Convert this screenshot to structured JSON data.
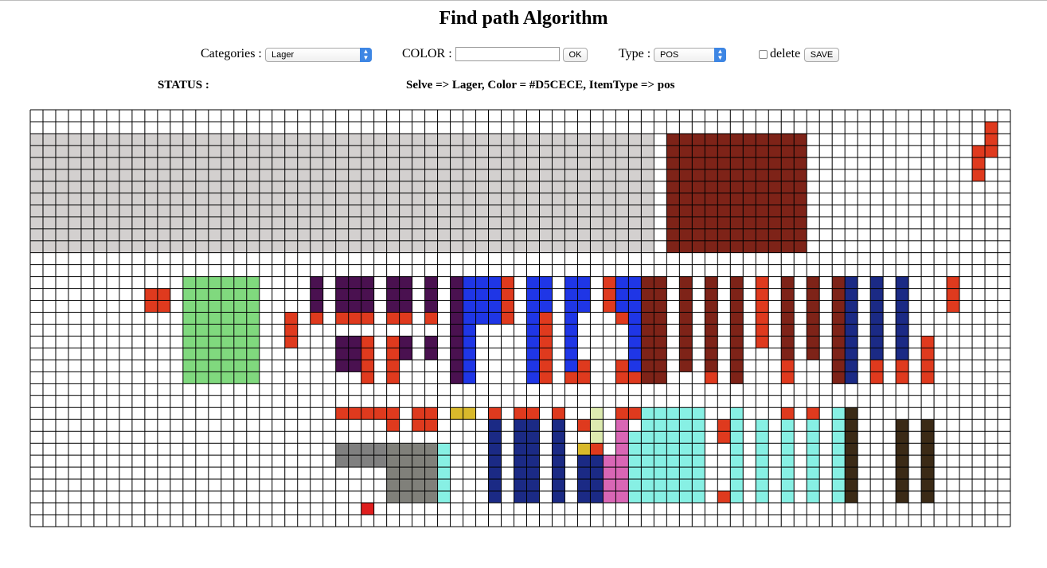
{
  "page": {
    "title": "Find path Algorithm"
  },
  "toolbar": {
    "categories_label": "Categories :",
    "categories_value": "Lager",
    "color_label": "COLOR :",
    "color_value": "",
    "ok_label": "OK",
    "type_label": "Type :",
    "type_value": "POS",
    "delete_label": "delete",
    "delete_checked": false,
    "save_label": "SAVE"
  },
  "status": {
    "label": "STATUS :",
    "message": "Selve => Lager, Color = #D5CECE, ItemType => pos"
  },
  "grid": {
    "cols": 77,
    "rows": 35,
    "line_color": "#000000",
    "cell_color": "#ffffff",
    "blocks": [
      {
        "c": 0,
        "r": 2,
        "w": 49,
        "h": 10,
        "color": "#D3D0CF"
      },
      {
        "c": 50,
        "r": 2,
        "w": 11,
        "h": 10,
        "color": "#7E2318"
      },
      {
        "c": 75,
        "r": 1,
        "w": 1,
        "h": 3,
        "color": "#DF3A1E"
      },
      {
        "c": 74,
        "r": 3,
        "w": 1,
        "h": 3,
        "color": "#DF3A1E"
      },
      {
        "c": 9,
        "r": 15,
        "w": 1,
        "h": 2,
        "color": "#DF3A1E"
      },
      {
        "c": 10,
        "r": 15,
        "w": 1,
        "h": 2,
        "color": "#DF3A1E"
      },
      {
        "c": 12,
        "r": 14,
        "w": 6,
        "h": 9,
        "color": "#80D97E"
      },
      {
        "c": 20,
        "r": 17,
        "w": 1,
        "h": 3,
        "color": "#DF3A1E"
      },
      {
        "c": 22,
        "r": 14,
        "w": 1,
        "h": 3,
        "color": "#4A1150"
      },
      {
        "c": 22,
        "r": 17,
        "w": 1,
        "h": 1,
        "color": "#DF3A1E"
      },
      {
        "c": 24,
        "r": 14,
        "w": 1,
        "h": 3,
        "color": "#4A1150"
      },
      {
        "c": 24,
        "r": 17,
        "w": 1,
        "h": 1,
        "color": "#DF3A1E"
      },
      {
        "c": 25,
        "r": 14,
        "w": 1,
        "h": 3,
        "color": "#4A1150"
      },
      {
        "c": 25,
        "r": 17,
        "w": 1,
        "h": 1,
        "color": "#DF3A1E"
      },
      {
        "c": 26,
        "r": 14,
        "w": 1,
        "h": 3,
        "color": "#4A1150"
      },
      {
        "c": 26,
        "r": 17,
        "w": 1,
        "h": 1,
        "color": "#DF3A1E"
      },
      {
        "c": 28,
        "r": 14,
        "w": 1,
        "h": 3,
        "color": "#4A1150"
      },
      {
        "c": 28,
        "r": 17,
        "w": 1,
        "h": 1,
        "color": "#DF3A1E"
      },
      {
        "c": 29,
        "r": 14,
        "w": 1,
        "h": 3,
        "color": "#4A1150"
      },
      {
        "c": 29,
        "r": 17,
        "w": 1,
        "h": 1,
        "color": "#DF3A1E"
      },
      {
        "c": 31,
        "r": 14,
        "w": 1,
        "h": 3,
        "color": "#4A1150"
      },
      {
        "c": 31,
        "r": 17,
        "w": 1,
        "h": 1,
        "color": "#DF3A1E"
      },
      {
        "c": 24,
        "r": 19,
        "w": 1,
        "h": 3,
        "color": "#4A1150"
      },
      {
        "c": 25,
        "r": 19,
        "w": 1,
        "h": 3,
        "color": "#4A1150"
      },
      {
        "c": 26,
        "r": 19,
        "w": 1,
        "h": 4,
        "color": "#DF3A1E"
      },
      {
        "c": 28,
        "r": 19,
        "w": 1,
        "h": 4,
        "color": "#DF3A1E"
      },
      {
        "c": 29,
        "r": 19,
        "w": 1,
        "h": 2,
        "color": "#4A1150"
      },
      {
        "c": 31,
        "r": 19,
        "w": 1,
        "h": 2,
        "color": "#4A1150"
      },
      {
        "c": 33,
        "r": 14,
        "w": 1,
        "h": 9,
        "color": "#4A1150"
      },
      {
        "c": 34,
        "r": 14,
        "w": 1,
        "h": 9,
        "color": "#1F36E6"
      },
      {
        "c": 35,
        "r": 14,
        "w": 1,
        "h": 4,
        "color": "#1F36E6"
      },
      {
        "c": 36,
        "r": 14,
        "w": 1,
        "h": 4,
        "color": "#1F36E6"
      },
      {
        "c": 37,
        "r": 14,
        "w": 1,
        "h": 4,
        "color": "#DF3A1E"
      },
      {
        "c": 39,
        "r": 14,
        "w": 1,
        "h": 9,
        "color": "#1F36E6"
      },
      {
        "c": 40,
        "r": 14,
        "w": 1,
        "h": 3,
        "color": "#1F36E6"
      },
      {
        "c": 40,
        "r": 17,
        "w": 1,
        "h": 6,
        "color": "#DF3A1E"
      },
      {
        "c": 42,
        "r": 14,
        "w": 1,
        "h": 8,
        "color": "#1F36E6"
      },
      {
        "c": 42,
        "r": 22,
        "w": 1,
        "h": 1,
        "color": "#DF3A1E"
      },
      {
        "c": 43,
        "r": 14,
        "w": 1,
        "h": 3,
        "color": "#1F36E6"
      },
      {
        "c": 43,
        "r": 21,
        "w": 1,
        "h": 2,
        "color": "#DF3A1E"
      },
      {
        "c": 45,
        "r": 14,
        "w": 1,
        "h": 3,
        "color": "#DF3A1E"
      },
      {
        "c": 46,
        "r": 14,
        "w": 1,
        "h": 3,
        "color": "#1F36E6"
      },
      {
        "c": 46,
        "r": 17,
        "w": 1,
        "h": 1,
        "color": "#DF3A1E"
      },
      {
        "c": 46,
        "r": 21,
        "w": 1,
        "h": 2,
        "color": "#DF3A1E"
      },
      {
        "c": 47,
        "r": 14,
        "w": 1,
        "h": 8,
        "color": "#1F36E6"
      },
      {
        "c": 47,
        "r": 22,
        "w": 1,
        "h": 1,
        "color": "#DF3A1E"
      },
      {
        "c": 48,
        "r": 14,
        "w": 1,
        "h": 9,
        "color": "#7E2318"
      },
      {
        "c": 49,
        "r": 14,
        "w": 1,
        "h": 9,
        "color": "#7E2318"
      },
      {
        "c": 51,
        "r": 14,
        "w": 1,
        "h": 8,
        "color": "#7E2318"
      },
      {
        "c": 53,
        "r": 14,
        "w": 1,
        "h": 8,
        "color": "#7E2318"
      },
      {
        "c": 53,
        "r": 22,
        "w": 1,
        "h": 1,
        "color": "#DF3A1E"
      },
      {
        "c": 55,
        "r": 14,
        "w": 1,
        "h": 9,
        "color": "#7E2318"
      },
      {
        "c": 57,
        "r": 14,
        "w": 1,
        "h": 6,
        "color": "#DF3A1E"
      },
      {
        "c": 59,
        "r": 14,
        "w": 1,
        "h": 7,
        "color": "#7E2318"
      },
      {
        "c": 59,
        "r": 21,
        "w": 1,
        "h": 2,
        "color": "#DF3A1E"
      },
      {
        "c": 61,
        "r": 14,
        "w": 1,
        "h": 7,
        "color": "#7E2318"
      },
      {
        "c": 63,
        "r": 14,
        "w": 1,
        "h": 9,
        "color": "#7E2318"
      },
      {
        "c": 64,
        "r": 14,
        "w": 1,
        "h": 9,
        "color": "#1B2A85"
      },
      {
        "c": 66,
        "r": 14,
        "w": 1,
        "h": 7,
        "color": "#1B2A85"
      },
      {
        "c": 66,
        "r": 21,
        "w": 1,
        "h": 2,
        "color": "#DF3A1E"
      },
      {
        "c": 68,
        "r": 14,
        "w": 1,
        "h": 7,
        "color": "#1B2A85"
      },
      {
        "c": 68,
        "r": 21,
        "w": 1,
        "h": 2,
        "color": "#DF3A1E"
      },
      {
        "c": 70,
        "r": 19,
        "w": 1,
        "h": 4,
        "color": "#DF3A1E"
      },
      {
        "c": 72,
        "r": 14,
        "w": 1,
        "h": 3,
        "color": "#DF3A1E"
      },
      {
        "c": 24,
        "r": 25,
        "w": 1,
        "h": 1,
        "color": "#DF3A1E"
      },
      {
        "c": 25,
        "r": 25,
        "w": 1,
        "h": 1,
        "color": "#DF3A1E"
      },
      {
        "c": 26,
        "r": 25,
        "w": 1,
        "h": 1,
        "color": "#DF3A1E"
      },
      {
        "c": 27,
        "r": 25,
        "w": 1,
        "h": 1,
        "color": "#DF3A1E"
      },
      {
        "c": 28,
        "r": 25,
        "w": 1,
        "h": 2,
        "color": "#DF3A1E"
      },
      {
        "c": 30,
        "r": 25,
        "w": 1,
        "h": 2,
        "color": "#DF3A1E"
      },
      {
        "c": 31,
        "r": 25,
        "w": 1,
        "h": 2,
        "color": "#DF3A1E"
      },
      {
        "c": 33,
        "r": 25,
        "w": 2,
        "h": 1,
        "color": "#D9B92B"
      },
      {
        "c": 24,
        "r": 28,
        "w": 1,
        "h": 2,
        "color": "#808080"
      },
      {
        "c": 25,
        "r": 28,
        "w": 1,
        "h": 2,
        "color": "#808080"
      },
      {
        "c": 26,
        "r": 28,
        "w": 1,
        "h": 2,
        "color": "#808080"
      },
      {
        "c": 27,
        "r": 28,
        "w": 1,
        "h": 2,
        "color": "#808080"
      },
      {
        "c": 28,
        "r": 28,
        "w": 4,
        "h": 5,
        "color": "#80807A"
      },
      {
        "c": 32,
        "r": 28,
        "w": 1,
        "h": 5,
        "color": "#87F0E4"
      },
      {
        "c": 26,
        "r": 33,
        "w": 1,
        "h": 1,
        "color": "#DF1E1E"
      },
      {
        "c": 36,
        "r": 25,
        "w": 1,
        "h": 1,
        "color": "#DF3A1E"
      },
      {
        "c": 36,
        "r": 26,
        "w": 1,
        "h": 7,
        "color": "#1B2A85"
      },
      {
        "c": 38,
        "r": 25,
        "w": 1,
        "h": 1,
        "color": "#DF3A1E"
      },
      {
        "c": 38,
        "r": 26,
        "w": 1,
        "h": 7,
        "color": "#1B2A85"
      },
      {
        "c": 39,
        "r": 25,
        "w": 1,
        "h": 1,
        "color": "#DF3A1E"
      },
      {
        "c": 39,
        "r": 26,
        "w": 1,
        "h": 7,
        "color": "#1B2A85"
      },
      {
        "c": 41,
        "r": 25,
        "w": 1,
        "h": 1,
        "color": "#DF3A1E"
      },
      {
        "c": 41,
        "r": 26,
        "w": 1,
        "h": 7,
        "color": "#1B2A85"
      },
      {
        "c": 43,
        "r": 26,
        "w": 1,
        "h": 1,
        "color": "#DF3A1E"
      },
      {
        "c": 43,
        "r": 28,
        "w": 1,
        "h": 1,
        "color": "#D9B92B"
      },
      {
        "c": 43,
        "r": 29,
        "w": 1,
        "h": 4,
        "color": "#1B2A85"
      },
      {
        "c": 44,
        "r": 25,
        "w": 1,
        "h": 3,
        "color": "#DDEBB0"
      },
      {
        "c": 44,
        "r": 28,
        "w": 1,
        "h": 1,
        "color": "#DF3A1E"
      },
      {
        "c": 44,
        "r": 29,
        "w": 1,
        "h": 4,
        "color": "#1B2A85"
      },
      {
        "c": 45,
        "r": 29,
        "w": 1,
        "h": 4,
        "color": "#D966B5"
      },
      {
        "c": 46,
        "r": 25,
        "w": 1,
        "h": 1,
        "color": "#DF3A1E"
      },
      {
        "c": 46,
        "r": 26,
        "w": 1,
        "h": 7,
        "color": "#D966B5"
      },
      {
        "c": 47,
        "r": 25,
        "w": 1,
        "h": 1,
        "color": "#DF3A1E"
      },
      {
        "c": 47,
        "r": 27,
        "w": 1,
        "h": 6,
        "color": "#87F0E4"
      },
      {
        "c": 48,
        "r": 25,
        "w": 5,
        "h": 8,
        "color": "#87F0E4"
      },
      {
        "c": 54,
        "r": 26,
        "w": 1,
        "h": 2,
        "color": "#DF3A1E"
      },
      {
        "c": 54,
        "r": 32,
        "w": 1,
        "h": 1,
        "color": "#DF3A1E"
      },
      {
        "c": 55,
        "r": 25,
        "w": 1,
        "h": 8,
        "color": "#87F0E4"
      },
      {
        "c": 57,
        "r": 26,
        "w": 1,
        "h": 7,
        "color": "#87F0E4"
      },
      {
        "c": 59,
        "r": 25,
        "w": 1,
        "h": 1,
        "color": "#DF3A1E"
      },
      {
        "c": 59,
        "r": 26,
        "w": 1,
        "h": 7,
        "color": "#87F0E4"
      },
      {
        "c": 61,
        "r": 25,
        "w": 1,
        "h": 1,
        "color": "#DF3A1E"
      },
      {
        "c": 61,
        "r": 26,
        "w": 1,
        "h": 7,
        "color": "#87F0E4"
      },
      {
        "c": 63,
        "r": 25,
        "w": 1,
        "h": 8,
        "color": "#87F0E4"
      },
      {
        "c": 64,
        "r": 25,
        "w": 1,
        "h": 8,
        "color": "#3B2A16"
      },
      {
        "c": 68,
        "r": 26,
        "w": 1,
        "h": 7,
        "color": "#3B2A16"
      },
      {
        "c": 70,
        "r": 26,
        "w": 1,
        "h": 7,
        "color": "#3B2A16"
      }
    ]
  }
}
